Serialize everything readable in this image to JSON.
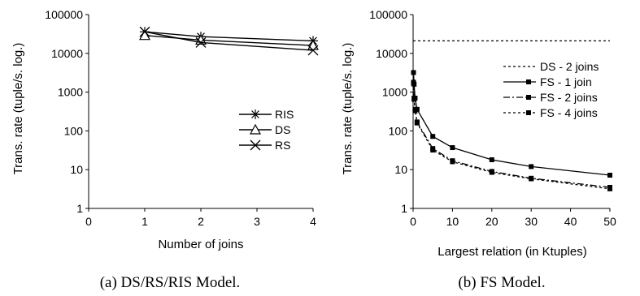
{
  "chart_data": [
    {
      "type": "line",
      "caption": "(a) DS/RS/RIS Model.",
      "xlabel": "Number of joins",
      "ylabel": "Trans. rate (tuple/s. log.)",
      "xlim": [
        0,
        4
      ],
      "ylim": [
        1,
        100000
      ],
      "yscale": "log",
      "x_ticks": [
        "0",
        "1",
        "2",
        "3",
        "4"
      ],
      "y_ticks": [
        "1",
        "10",
        "100",
        "1000",
        "10000",
        "100000"
      ],
      "legend_position": "right-middle",
      "series": [
        {
          "name": "RIS",
          "marker": "asterisk",
          "x": [
            1,
            2,
            4
          ],
          "values": [
            36000,
            27000,
            21000
          ]
        },
        {
          "name": "DS",
          "marker": "triangle",
          "x": [
            1,
            2,
            4
          ],
          "values": [
            29000,
            22000,
            16000
          ]
        },
        {
          "name": "RS",
          "marker": "x",
          "x": [
            1,
            2,
            4
          ],
          "values": [
            36000,
            19000,
            12000
          ]
        }
      ]
    },
    {
      "type": "line",
      "caption": "(b) FS Model.",
      "xlabel": "Largest relation (in Ktuples)",
      "ylabel": "Trans. rate (tuple/s. log.)",
      "xlim": [
        0,
        50
      ],
      "ylim": [
        1,
        100000
      ],
      "yscale": "log",
      "x_ticks": [
        "0",
        "10",
        "20",
        "30",
        "40",
        "50"
      ],
      "y_ticks": [
        "1",
        "10",
        "100",
        "1000",
        "10000",
        "100000"
      ],
      "legend_position": "right-middle",
      "series": [
        {
          "name": "DS - 2 joins",
          "style": "dotted",
          "marker": "none",
          "x": [
            0,
            50
          ],
          "values": [
            21000,
            21000
          ]
        },
        {
          "name": "FS - 1 join",
          "style": "solid",
          "marker": "square",
          "x": [
            0.1,
            0.25,
            0.5,
            1,
            5,
            10,
            20,
            30,
            50
          ],
          "values": [
            3200,
            1600,
            700,
            360,
            72,
            37,
            18,
            12,
            7.2
          ]
        },
        {
          "name": "FS - 2 joins",
          "style": "dashdot",
          "marker": "square",
          "x": [
            0.1,
            0.25,
            0.5,
            1,
            5,
            10,
            20,
            30,
            50
          ],
          "values": [
            1800,
            700,
            360,
            170,
            35,
            17,
            9,
            6,
            3.5
          ]
        },
        {
          "name": "FS - 4 joins",
          "style": "dotted",
          "marker": "square",
          "x": [
            0.1,
            0.25,
            0.5,
            1,
            5,
            10,
            20,
            30,
            50
          ],
          "values": [
            1700,
            650,
            330,
            160,
            32,
            16,
            8.5,
            5.8,
            3.2
          ]
        }
      ]
    }
  ]
}
